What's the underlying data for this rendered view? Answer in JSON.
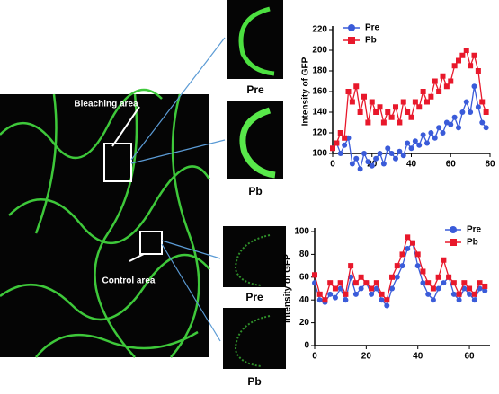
{
  "figure": {
    "bleach_label": "Bleaching area",
    "control_label": "Control area",
    "top_pre": "Pre",
    "top_pb": "Pb",
    "bottom_pre": "Pre",
    "bottom_pb": "Pb"
  },
  "chart_data": [
    {
      "type": "line",
      "y_label": "Intensity of GFP",
      "x": [
        0,
        2,
        4,
        6,
        8,
        10,
        12,
        14,
        16,
        18,
        20,
        22,
        24,
        26,
        28,
        30,
        32,
        34,
        36,
        38,
        40,
        42,
        44,
        46,
        48,
        50,
        52,
        54,
        56,
        58,
        60,
        62,
        64,
        66,
        68,
        70,
        72,
        74,
        76,
        78
      ],
      "series": [
        {
          "name": "Pre",
          "color": "#3a5bd9",
          "marker": "circle",
          "values": [
            105,
            110,
            100,
            108,
            115,
            90,
            95,
            85,
            100,
            92,
            88,
            95,
            100,
            90,
            105,
            100,
            95,
            102,
            98,
            110,
            105,
            112,
            108,
            118,
            110,
            120,
            115,
            125,
            120,
            130,
            128,
            135,
            125,
            140,
            150,
            140,
            165,
            145,
            130,
            125
          ]
        },
        {
          "name": "Pb",
          "color": "#e8182b",
          "marker": "square",
          "values": [
            105,
            110,
            120,
            115,
            160,
            150,
            165,
            140,
            155,
            130,
            150,
            140,
            145,
            130,
            140,
            135,
            145,
            130,
            150,
            140,
            135,
            150,
            145,
            160,
            150,
            155,
            170,
            160,
            175,
            165,
            170,
            185,
            190,
            195,
            200,
            185,
            195,
            180,
            150,
            140
          ]
        }
      ],
      "xlim": [
        0,
        80
      ],
      "xticks": [
        0,
        20,
        40,
        60,
        80
      ],
      "ylim": [
        100,
        220
      ],
      "yticks": [
        100,
        120,
        140,
        160,
        180,
        200,
        220
      ],
      "legend": "top-left"
    },
    {
      "type": "line",
      "y_label": "Intensity of GFP",
      "x": [
        0,
        2,
        4,
        6,
        8,
        10,
        12,
        14,
        16,
        18,
        20,
        22,
        24,
        26,
        28,
        30,
        32,
        34,
        36,
        38,
        40,
        42,
        44,
        46,
        48,
        50,
        52,
        54,
        56,
        58,
        60,
        62,
        64,
        66
      ],
      "series": [
        {
          "name": "Pre",
          "color": "#3a5bd9",
          "marker": "circle",
          "values": [
            55,
            40,
            38,
            45,
            42,
            50,
            40,
            60,
            45,
            50,
            55,
            45,
            50,
            40,
            35,
            50,
            60,
            70,
            85,
            90,
            70,
            55,
            45,
            40,
            50,
            55,
            60,
            45,
            40,
            50,
            45,
            40,
            50,
            48
          ]
        },
        {
          "name": "Pb",
          "color": "#e8182b",
          "marker": "square",
          "values": [
            62,
            45,
            40,
            55,
            50,
            55,
            45,
            70,
            55,
            60,
            55,
            50,
            55,
            45,
            40,
            60,
            70,
            80,
            95,
            90,
            80,
            65,
            55,
            50,
            60,
            75,
            60,
            55,
            45,
            55,
            50,
            45,
            55,
            52
          ]
        }
      ],
      "xlim": [
        0,
        68
      ],
      "xticks": [
        0,
        20,
        40,
        60
      ],
      "ylim": [
        0,
        100
      ],
      "yticks": [
        0,
        20,
        40,
        60,
        80,
        100
      ],
      "legend": "top-right"
    }
  ]
}
